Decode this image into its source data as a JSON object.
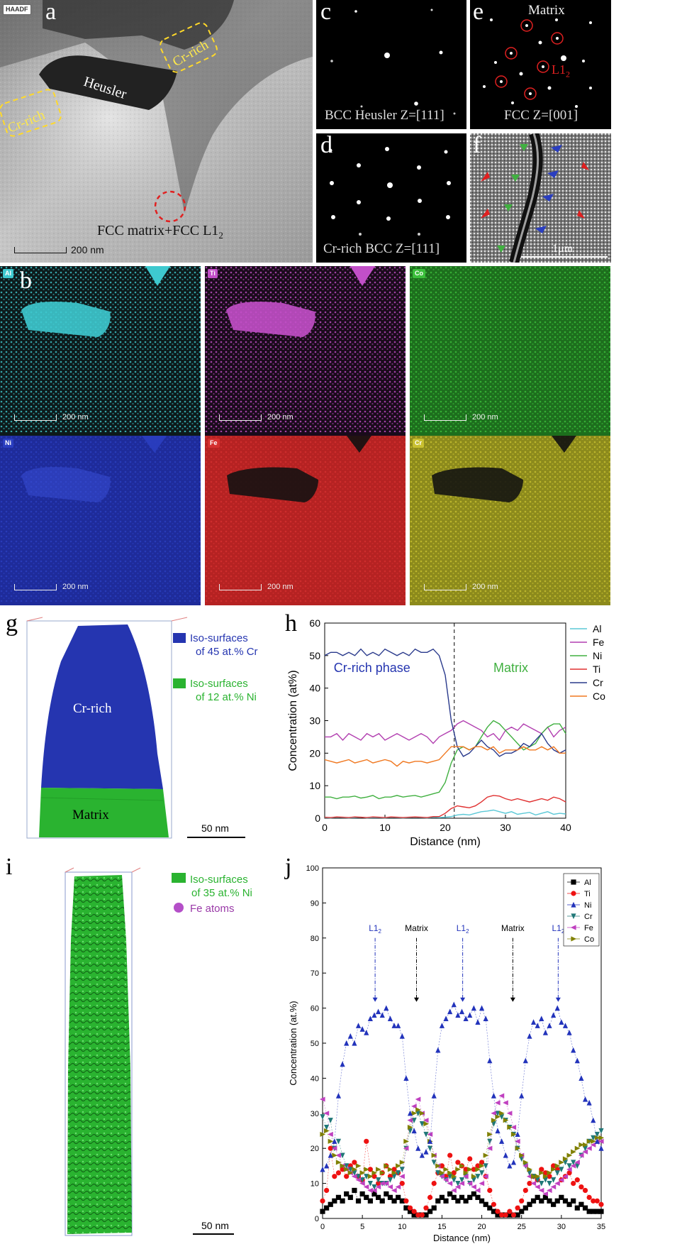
{
  "panel_a": {
    "letter": "a",
    "badge": "HAADF",
    "heusler": "Heusler",
    "cr_rich_1": "Cr-rich",
    "cr_rich_2": "Cr-rich",
    "matrix_label": "FCC matrix+FCC L1",
    "matrix_sub": "2",
    "scale": "200 nm"
  },
  "panel_c": {
    "letter": "c",
    "caption": "BCC Heusler Z=[111]"
  },
  "panel_d": {
    "letter": "d",
    "caption": "Cr-rich BCC  Z=[111]"
  },
  "panel_e": {
    "letter": "e",
    "title": "Matrix",
    "l12": "L1",
    "l12_sub": "2",
    "caption": "FCC Z=[001]"
  },
  "panel_f": {
    "letter": "f",
    "scale": "1μm"
  },
  "panel_b": {
    "letter": "b",
    "maps": [
      {
        "element": "Al",
        "color": "#3ec9cf",
        "bg": "#0d1a1b",
        "scale": "200 nm"
      },
      {
        "element": "Ti",
        "color": "#c24fc8",
        "bg": "#1a0b1b",
        "scale": "200 nm"
      },
      {
        "element": "Co",
        "color": "#3bbf3b",
        "bg": "#1d6e1d",
        "scale": "200 nm"
      },
      {
        "element": "Ni",
        "color": "#2a3ec0",
        "bg": "#1e2b9a",
        "scale": "200 nm"
      },
      {
        "element": "Fe",
        "color": "#d43030",
        "bg": "#b52222",
        "scale": "200 nm"
      },
      {
        "element": "Cr",
        "color": "#c8c030",
        "bg": "#8c8a1c",
        "scale": "200 nm"
      }
    ]
  },
  "panel_g": {
    "letter": "g",
    "legend1": "Iso-surfaces",
    "legend1b": "of 45 at.% Cr",
    "legend2": "Iso-surfaces",
    "legend2b": "of 12 at.% Ni",
    "cr_label": "Cr-rich",
    "matrix_label": "Matrix",
    "scale": "50 nm"
  },
  "panel_i": {
    "letter": "i",
    "legend1": "Iso-surfaces",
    "legend1b": "of 35 at.% Ni",
    "legend2": "Fe atoms",
    "scale": "50 nm"
  },
  "chart_data": [
    {
      "id": "h",
      "type": "line",
      "letter": "h",
      "xlabel": "Distance (nm)",
      "ylabel": "Concentration (at%)",
      "xlim": [
        0,
        40
      ],
      "ylim": [
        0,
        60
      ],
      "xticks": [
        0,
        10,
        20,
        30,
        40
      ],
      "yticks": [
        0,
        10,
        20,
        30,
        40,
        50,
        60
      ],
      "annotations": [
        "Cr-rich phase",
        "Matrix"
      ],
      "divider_x": 21.5,
      "x": [
        0,
        1,
        2,
        3,
        4,
        5,
        6,
        7,
        8,
        9,
        10,
        11,
        12,
        13,
        14,
        15,
        16,
        17,
        18,
        19,
        20,
        21,
        22,
        23,
        24,
        25,
        26,
        27,
        28,
        29,
        30,
        31,
        32,
        33,
        34,
        35,
        36,
        37,
        38,
        39,
        40
      ],
      "series": [
        {
          "name": "Al",
          "color": "#5bc8d6",
          "values": [
            0.2,
            0.1,
            0.3,
            0.2,
            0.1,
            0.2,
            0.3,
            0.1,
            0.2,
            0.2,
            0.1,
            0.3,
            0.2,
            0.1,
            0.2,
            0.3,
            0.2,
            0.1,
            0.3,
            0.2,
            0.3,
            0.5,
            1.0,
            1.2,
            1.0,
            1.5,
            2.0,
            2.2,
            2.5,
            2.0,
            1.5,
            2.0,
            1.2,
            1.5,
            1.8,
            1.0,
            1.5,
            2.0,
            1.2,
            1.5,
            1.3
          ]
        },
        {
          "name": "Fe",
          "color": "#b23fb0",
          "values": [
            25,
            25,
            26,
            24,
            26,
            25,
            24,
            26,
            25,
            26,
            24,
            25,
            26,
            25,
            24,
            25,
            26,
            25,
            23,
            25,
            26,
            27,
            29,
            30,
            29,
            28,
            27,
            25,
            26,
            24,
            27,
            28,
            27,
            29,
            28,
            27,
            26,
            28,
            25,
            27,
            28
          ]
        },
        {
          "name": "Ni",
          "color": "#40b040",
          "values": [
            6.5,
            6.5,
            6.0,
            6.5,
            6.5,
            6.8,
            6.2,
            6.5,
            7.0,
            6.0,
            6.5,
            6.5,
            7.0,
            6.5,
            6.8,
            7.0,
            6.5,
            7.0,
            7.5,
            8.0,
            11,
            17,
            21,
            22,
            21,
            22,
            25,
            28,
            30,
            29,
            27,
            25,
            23,
            21,
            22,
            23,
            26,
            28,
            29,
            29,
            26
          ]
        },
        {
          "name": "Ti",
          "color": "#e03030",
          "values": [
            0.3,
            0.2,
            0.4,
            0.3,
            0.2,
            0.4,
            0.3,
            0.2,
            0.4,
            0.3,
            0.2,
            0.4,
            0.3,
            0.2,
            0.3,
            0.4,
            0.3,
            0.2,
            0.5,
            0.5,
            1.5,
            3.0,
            3.8,
            3.5,
            3.2,
            3.8,
            5.0,
            6.5,
            7.0,
            6.8,
            6.0,
            5.5,
            6.0,
            5.5,
            5.0,
            5.5,
            6.0,
            5.5,
            6.5,
            6.0,
            5.0
          ]
        },
        {
          "name": "Cr",
          "color": "#2a3a8c",
          "values": [
            50,
            51,
            51,
            50,
            51,
            50,
            52,
            50,
            51,
            50,
            52,
            51,
            50,
            51,
            50,
            52,
            51,
            51,
            52,
            50,
            44,
            30,
            22,
            19,
            20,
            22,
            24,
            22,
            21,
            19,
            20,
            20,
            21,
            23,
            22,
            24,
            26,
            23,
            21,
            20,
            21
          ]
        },
        {
          "name": "Co",
          "color": "#f07820",
          "values": [
            18,
            17.5,
            17,
            17.5,
            18,
            17,
            17.5,
            18,
            17,
            17.5,
            18,
            17.5,
            16,
            17.5,
            17,
            17.5,
            17.5,
            17,
            17.5,
            18,
            20,
            22,
            22,
            22,
            21,
            22,
            22,
            21,
            22,
            20,
            21,
            21,
            21,
            22,
            21,
            21,
            22,
            21,
            22,
            20,
            20
          ]
        }
      ]
    },
    {
      "id": "j",
      "type": "scatter",
      "letter": "j",
      "xlabel": "Distance (nm)",
      "ylabel": "Concentration (at.%)",
      "xlim": [
        0,
        35
      ],
      "ylim": [
        0,
        100
      ],
      "xticks": [
        0,
        5,
        10,
        15,
        20,
        25,
        30,
        35
      ],
      "yticks": [
        0,
        10,
        20,
        30,
        40,
        50,
        60,
        70,
        80,
        90,
        100
      ],
      "region_labels": [
        {
          "text": "L1",
          "sub": "2",
          "x": 6.6,
          "color": "#2233bb"
        },
        {
          "text": "Matrix",
          "sub": "",
          "x": 11.8,
          "color": "#000000"
        },
        {
          "text": "L1",
          "sub": "2",
          "x": 17.6,
          "color": "#2233bb"
        },
        {
          "text": "Matrix",
          "sub": "",
          "x": 23.9,
          "color": "#000000"
        },
        {
          "text": "L1",
          "sub": "2",
          "x": 29.6,
          "color": "#2233bb"
        }
      ],
      "series": [
        {
          "name": "Al",
          "color": "#000000",
          "marker": "square"
        },
        {
          "name": "Ti",
          "color": "#ee1111",
          "marker": "circle"
        },
        {
          "name": "Ni",
          "color": "#2233bb",
          "marker": "triangle-up"
        },
        {
          "name": "Cr",
          "color": "#207878",
          "marker": "triangle-down"
        },
        {
          "name": "Fe",
          "color": "#c040c0",
          "marker": "triangle-left"
        },
        {
          "name": "Co",
          "color": "#808000",
          "marker": "triangle-right"
        }
      ],
      "x": [
        0,
        0.5,
        1,
        1.5,
        2,
        2.5,
        3,
        3.5,
        4,
        4.5,
        5,
        5.5,
        6,
        6.5,
        7,
        7.5,
        8,
        8.5,
        9,
        9.5,
        10,
        10.5,
        11,
        11.5,
        12,
        12.5,
        13,
        13.5,
        14,
        14.5,
        15,
        15.5,
        16,
        16.5,
        17,
        17.5,
        18,
        18.5,
        19,
        19.5,
        20,
        20.5,
        21,
        21.5,
        22,
        22.5,
        23,
        23.5,
        24,
        24.5,
        25,
        25.5,
        26,
        26.5,
        27,
        27.5,
        28,
        28.5,
        29,
        29.5,
        30,
        30.5,
        31,
        31.5,
        32,
        32.5,
        33,
        33.5,
        34,
        34.5,
        35
      ],
      "values": {
        "Ni": [
          14,
          15,
          18,
          22,
          35,
          44,
          50,
          52,
          50,
          55,
          54,
          53,
          57,
          58,
          59,
          58,
          60,
          57,
          55,
          55,
          52,
          40,
          30,
          25,
          20,
          18,
          19,
          22,
          35,
          48,
          55,
          57,
          59,
          61,
          58,
          59,
          57,
          58,
          60,
          56,
          60,
          57,
          45,
          35,
          25,
          22,
          18,
          15,
          16,
          24,
          35,
          45,
          52,
          56,
          55,
          57,
          53,
          55,
          58,
          60,
          56,
          55,
          53,
          48,
          45,
          40,
          34,
          33,
          28,
          22,
          20
        ],
        "Cr": [
          29,
          26,
          28,
          20,
          22,
          18,
          15,
          14,
          13,
          12,
          11,
          12,
          10,
          9,
          11,
          10,
          10,
          11,
          12,
          13,
          14,
          20,
          25,
          28,
          30,
          27,
          24,
          20,
          16,
          13,
          12,
          11,
          12,
          11,
          10,
          11,
          12,
          10,
          11,
          12,
          13,
          15,
          22,
          27,
          30,
          29,
          28,
          26,
          24,
          20,
          17,
          15,
          13,
          12,
          11,
          10,
          11,
          10,
          11,
          13,
          14,
          16,
          15,
          16,
          15,
          18,
          20,
          22,
          23,
          24,
          25
        ],
        "Fe": [
          34,
          30,
          24,
          20,
          18,
          15,
          14,
          13,
          12,
          11,
          10,
          9,
          8,
          8,
          9,
          10,
          10,
          9,
          8,
          9,
          12,
          20,
          28,
          32,
          34,
          30,
          28,
          24,
          18,
          15,
          12,
          11,
          10,
          8,
          9,
          10,
          12,
          10,
          9,
          8,
          10,
          12,
          20,
          30,
          33,
          35,
          33,
          30,
          26,
          22,
          18,
          15,
          12,
          10,
          9,
          8,
          7,
          8,
          9,
          10,
          11,
          12,
          14,
          15,
          16,
          18,
          19,
          20,
          21,
          22,
          22
        ],
        "Co": [
          24,
          25,
          22,
          18,
          16,
          15,
          14,
          13,
          14,
          15,
          13,
          14,
          12,
          13,
          14,
          13,
          15,
          14,
          13,
          15,
          16,
          22,
          26,
          30,
          31,
          30,
          27,
          22,
          18,
          15,
          13,
          14,
          13,
          12,
          14,
          15,
          13,
          14,
          12,
          14,
          15,
          18,
          24,
          28,
          29,
          30,
          28,
          26,
          24,
          20,
          18,
          16,
          14,
          12,
          12,
          13,
          12,
          13,
          14,
          15,
          16,
          17,
          18,
          19,
          20,
          21,
          21,
          22,
          22,
          23,
          23
        ],
        "Ti": [
          5,
          8,
          20,
          12,
          13,
          14,
          12,
          15,
          16,
          12,
          11,
          22,
          14,
          12,
          10,
          13,
          15,
          12,
          14,
          13,
          10,
          5,
          3,
          2,
          1,
          1,
          3,
          6,
          10,
          13,
          15,
          12,
          18,
          13,
          16,
          15,
          14,
          17,
          14,
          15,
          16,
          12,
          8,
          4,
          2,
          1,
          1,
          2,
          1,
          3,
          5,
          8,
          10,
          12,
          11,
          14,
          13,
          12,
          15,
          14,
          11,
          12,
          13,
          10,
          11,
          9,
          8,
          6,
          5,
          5,
          4
        ],
        "Al": [
          2,
          3,
          4,
          5,
          6,
          5,
          7,
          6,
          8,
          5,
          7,
          6,
          5,
          7,
          6,
          5,
          7,
          6,
          5,
          6,
          5,
          3,
          2,
          1,
          1,
          1,
          1,
          2,
          3,
          5,
          6,
          5,
          7,
          6,
          5,
          6,
          5,
          6,
          7,
          6,
          5,
          4,
          3,
          2,
          1,
          1,
          1,
          1,
          1,
          1,
          2,
          3,
          4,
          5,
          6,
          5,
          6,
          5,
          4,
          5,
          6,
          5,
          4,
          5,
          3,
          4,
          3,
          2,
          2,
          2,
          2
        ]
      }
    }
  ]
}
